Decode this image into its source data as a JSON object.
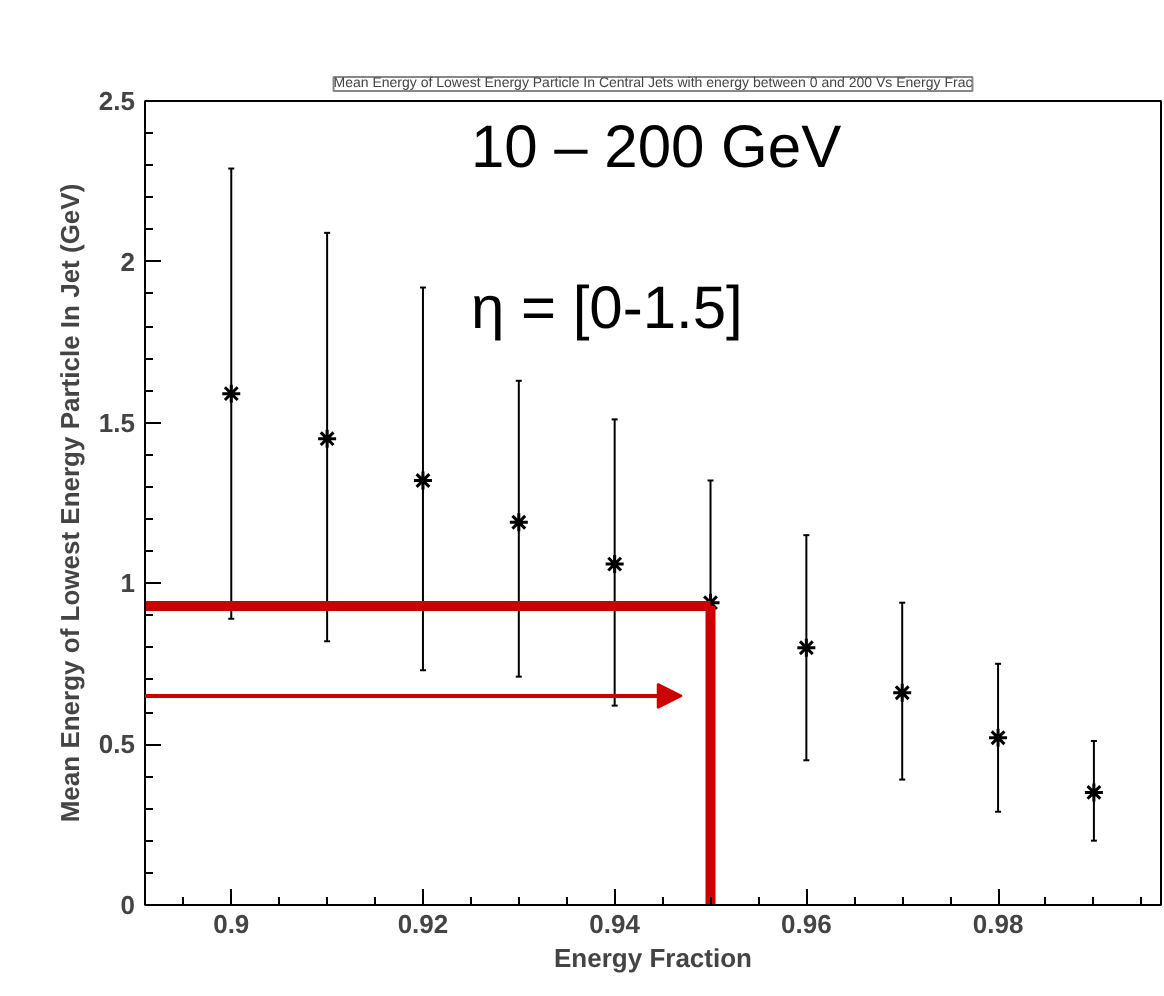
{
  "chart_data": {
    "type": "scatter",
    "title": "Mean Energy of Lowest Energy Particle In Central Jets with energy between 0 and 200 Vs Energy Frac",
    "xlabel": "Energy Fraction",
    "ylabel": "Mean Energy of Lowest Energy Particle In Jet (GeV)",
    "x": [
      0.9,
      0.91,
      0.92,
      0.93,
      0.94,
      0.95,
      0.96,
      0.97,
      0.98,
      0.99
    ],
    "values": [
      1.59,
      1.45,
      1.32,
      1.19,
      1.06,
      0.94,
      0.8,
      0.66,
      0.52,
      0.35
    ],
    "errors": [
      [
        0.89,
        2.29
      ],
      [
        0.82,
        2.09
      ],
      [
        0.73,
        1.92
      ],
      [
        0.71,
        1.63
      ],
      [
        0.62,
        1.51
      ],
      [
        0.55,
        1.32
      ],
      [
        0.45,
        1.15
      ],
      [
        0.39,
        0.94
      ],
      [
        0.29,
        0.75
      ],
      [
        0.2,
        0.51
      ]
    ],
    "color": "#000000",
    "marker": "cross",
    "xlim": [
      0.891,
      0.997
    ],
    "ylim": [
      0,
      2.5
    ],
    "xticks": [
      0.9,
      0.92,
      0.94,
      0.96,
      0.98
    ],
    "yticks": [
      0,
      0.5,
      1,
      1.5,
      2,
      2.5
    ],
    "grid": false,
    "ref_lines": [
      {
        "axis": "y",
        "value": 0.93,
        "color": "#cc0000"
      },
      {
        "axis": "x",
        "value": 0.95,
        "color": "#cc0000"
      }
    ],
    "annotations": [
      "10 – 200 GeV",
      "η = [0-1.5]"
    ]
  }
}
